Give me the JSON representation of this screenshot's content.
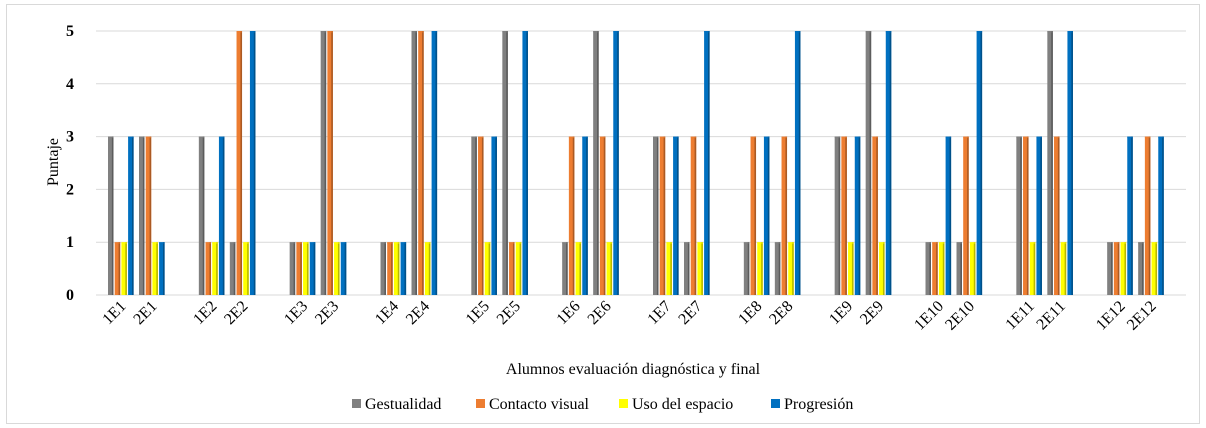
{
  "chart_data": {
    "type": "bar",
    "title": "",
    "xlabel": "Alumnos evaluación diagnóstica y final",
    "ylabel": "Puntaje",
    "ylim": [
      0,
      5
    ],
    "yticks": [
      "0",
      "1",
      "2",
      "3",
      "4",
      "5"
    ],
    "grid": true,
    "legend_position": "bottom",
    "categories": [
      "1E1",
      "2E1",
      "1E2",
      "2E2",
      "1E3",
      "2E3",
      "1E4",
      "2E4",
      "1E5",
      "2E5",
      "1E6",
      "2E6",
      "1E7",
      "2E7",
      "1E8",
      "2E8",
      "1E9",
      "2E9",
      "1E10",
      "2E10",
      "1E11",
      "2E11",
      "1E12",
      "2E12"
    ],
    "series": [
      {
        "name": "Gestualidad",
        "color": "#808080",
        "values": [
          3,
          3,
          3,
          1,
          1,
          5,
          1,
          5,
          3,
          5,
          1,
          5,
          3,
          1,
          1,
          1,
          3,
          5,
          1,
          1,
          3,
          5,
          1,
          1
        ]
      },
      {
        "name": "Contacto visual",
        "color": "#ed7d31",
        "values": [
          1,
          3,
          1,
          5,
          1,
          5,
          1,
          5,
          3,
          1,
          3,
          3,
          3,
          3,
          3,
          3,
          3,
          3,
          1,
          3,
          3,
          3,
          1,
          3
        ]
      },
      {
        "name": "Uso del espacio",
        "color": "#ffff00",
        "values": [
          1,
          1,
          1,
          1,
          1,
          1,
          1,
          1,
          1,
          1,
          1,
          1,
          1,
          1,
          1,
          1,
          1,
          1,
          1,
          1,
          1,
          1,
          1,
          1
        ]
      },
      {
        "name": "Progresión",
        "color": "#0070c0",
        "values": [
          3,
          1,
          3,
          5,
          1,
          1,
          1,
          5,
          3,
          5,
          3,
          5,
          3,
          5,
          3,
          5,
          3,
          5,
          3,
          5,
          3,
          5,
          3,
          3
        ]
      }
    ]
  }
}
